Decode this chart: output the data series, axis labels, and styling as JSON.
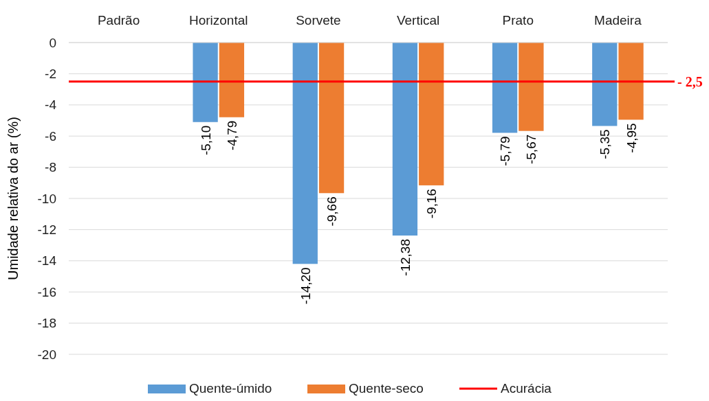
{
  "chart_data": {
    "type": "bar",
    "ylabel": "Umidade relativa do ar (%)",
    "categories": [
      "Padrão",
      "Horizontal",
      "Sorvete",
      "Vertical",
      "Prato",
      "Madeira"
    ],
    "series": [
      {
        "name": "Quente-úmido",
        "color": "#5b9bd5",
        "values": [
          null,
          -5.1,
          -14.2,
          -12.38,
          -5.79,
          -5.35
        ],
        "value_labels": [
          null,
          "-5,10",
          "-14,20",
          "-12,38",
          "-5,79",
          "-5,35"
        ]
      },
      {
        "name": "Quente-seco",
        "color": "#ed7d31",
        "values": [
          null,
          -4.79,
          -9.66,
          -9.16,
          -5.67,
          -4.95
        ],
        "value_labels": [
          null,
          "-4,79",
          "-9,66",
          "-9,16",
          "-5,67",
          "-4,95"
        ]
      }
    ],
    "ylim": [
      -20,
      0
    ],
    "yticks": [
      0,
      -2,
      -4,
      -6,
      -8,
      -10,
      -12,
      -14,
      -16,
      -18,
      -20
    ],
    "grid": "y",
    "legend": "bottom",
    "ref_lines": [
      {
        "axis": "y",
        "value": -2.5,
        "label": "Acurácia",
        "color": "#ff0000"
      }
    ],
    "annotations": [
      "- 2,5"
    ]
  }
}
